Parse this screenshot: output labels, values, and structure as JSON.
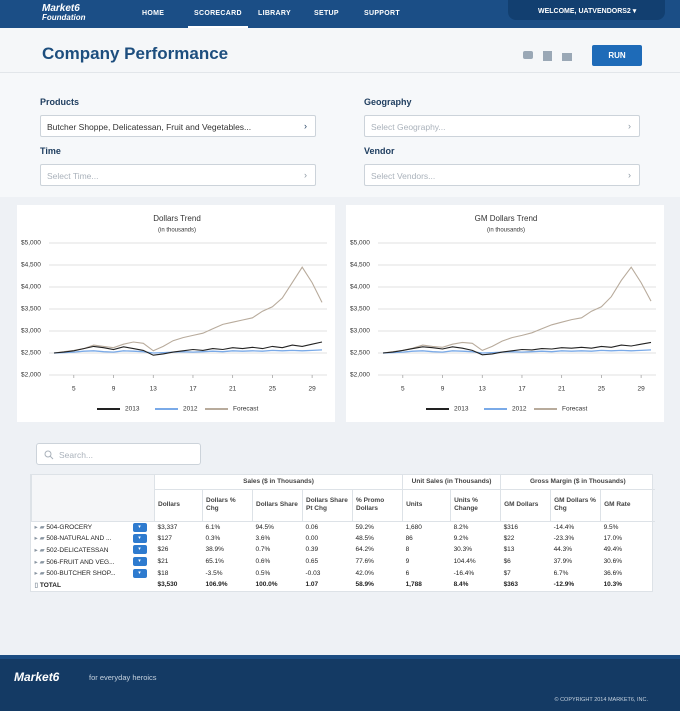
{
  "logo": {
    "line1": "Market6",
    "line2": "Foundation"
  },
  "nav": [
    "HOME",
    "SCORECARD",
    "LIBRARY",
    "SETUP",
    "SUPPORT"
  ],
  "welcome": "WELCOME, UATVENDORS2",
  "header": {
    "title": "Company Performance",
    "run": "RUN"
  },
  "filters": [
    {
      "label": "Products",
      "value": "Butcher Shoppe, Delicatessan, Fruit and Vegetables..."
    },
    {
      "label": "Geography",
      "value": "Select Geography..."
    },
    {
      "label": "Time",
      "value": "Select Time..."
    },
    {
      "label": "Vendor",
      "value": "Select Vendors..."
    }
  ],
  "chart_data": [
    {
      "type": "line",
      "title": "Dollars Trend",
      "subtitle": "(in thousands)",
      "x": [
        3,
        4,
        5,
        6,
        7,
        8,
        9,
        10,
        11,
        12,
        13,
        14,
        15,
        16,
        17,
        18,
        19,
        20,
        21,
        22,
        23,
        24,
        25,
        26,
        27,
        28,
        29,
        30
      ],
      "xlim": [
        2.5,
        30.5
      ],
      "xticks": [
        5,
        9,
        13,
        17,
        21,
        25,
        29
      ],
      "ylim": [
        2000,
        5000
      ],
      "yticks": [
        {
          "value": 2000,
          "label": "$2,000"
        },
        {
          "value": 2500,
          "label": "$2,500"
        },
        {
          "value": 3000,
          "label": "$3,000"
        },
        {
          "value": 3500,
          "label": "$3,500"
        },
        {
          "value": 4000,
          "label": "$4,000"
        },
        {
          "value": 4500,
          "label": "$4,500"
        },
        {
          "value": 5000,
          "label": "$5,000"
        }
      ],
      "grid": true,
      "series": [
        {
          "name": "2013",
          "color": "#222222",
          "values": [
            2500,
            2520,
            2550,
            2600,
            2650,
            2620,
            2580,
            2640,
            2600,
            2560,
            2450,
            2480,
            2520,
            2550,
            2580,
            2560,
            2600,
            2580,
            2620,
            2600,
            2630,
            2600,
            2650,
            2620,
            2680,
            2650,
            2700,
            2750
          ]
        },
        {
          "name": "2012",
          "color": "#7aaae8",
          "values": [
            2500,
            2510,
            2520,
            2540,
            2550,
            2530,
            2520,
            2550,
            2540,
            2530,
            2500,
            2510,
            2520,
            2530,
            2520,
            2530,
            2540,
            2530,
            2550,
            2540,
            2550,
            2540,
            2560,
            2550,
            2560,
            2550,
            2560,
            2570
          ]
        },
        {
          "name": "Forecast",
          "color": "#b8ab9c",
          "values": [
            2500,
            2530,
            2560,
            2600,
            2680,
            2650,
            2620,
            2700,
            2750,
            2720,
            2550,
            2650,
            2780,
            2850,
            2900,
            2950,
            3050,
            3150,
            3200,
            3250,
            3300,
            3450,
            3550,
            3750,
            4100,
            4450,
            4100,
            3650
          ]
        }
      ]
    },
    {
      "type": "line",
      "title": "GM Dollars Trend",
      "subtitle": "(in thousands)",
      "x": [
        3,
        4,
        5,
        6,
        7,
        8,
        9,
        10,
        11,
        12,
        13,
        14,
        15,
        16,
        17,
        18,
        19,
        20,
        21,
        22,
        23,
        24,
        25,
        26,
        27,
        28,
        29,
        30
      ],
      "xlim": [
        2.5,
        30.5
      ],
      "xticks": [
        5,
        9,
        13,
        17,
        21,
        25,
        29
      ],
      "ylim": [
        2000,
        5000
      ],
      "yticks": [
        {
          "value": 2000,
          "label": "$2,000"
        },
        {
          "value": 2500,
          "label": "$2,500"
        },
        {
          "value": 3000,
          "label": "$3,000"
        },
        {
          "value": 3500,
          "label": "$3,500"
        },
        {
          "value": 4000,
          "label": "$4,000"
        },
        {
          "value": 4500,
          "label": "$4,500"
        },
        {
          "value": 5000,
          "label": "$5,000"
        }
      ],
      "grid": true,
      "series": [
        {
          "name": "2013",
          "color": "#222222",
          "values": [
            2500,
            2520,
            2560,
            2600,
            2640,
            2620,
            2590,
            2640,
            2610,
            2560,
            2460,
            2480,
            2520,
            2550,
            2580,
            2570,
            2600,
            2590,
            2620,
            2610,
            2630,
            2610,
            2650,
            2630,
            2680,
            2660,
            2700,
            2740
          ]
        },
        {
          "name": "2012",
          "color": "#7aaae8",
          "values": [
            2500,
            2510,
            2520,
            2540,
            2550,
            2530,
            2520,
            2550,
            2540,
            2530,
            2500,
            2510,
            2520,
            2530,
            2520,
            2530,
            2540,
            2530,
            2550,
            2540,
            2550,
            2540,
            2560,
            2550,
            2560,
            2550,
            2560,
            2570
          ]
        },
        {
          "name": "Forecast",
          "color": "#b8ab9c",
          "values": [
            2500,
            2530,
            2560,
            2610,
            2680,
            2650,
            2630,
            2700,
            2740,
            2720,
            2560,
            2650,
            2770,
            2850,
            2900,
            2960,
            3050,
            3140,
            3200,
            3260,
            3300,
            3450,
            3550,
            3780,
            4150,
            4450,
            4100,
            3680
          ]
        }
      ]
    }
  ],
  "search": "Search...",
  "table": {
    "groups": [
      "Sales ($ in Thousands)",
      "Unit Sales (in Thousands)",
      "Gross Margin ($ in Thousands)"
    ],
    "columns": [
      "Dollars",
      "Dollars % Chg",
      "Dollars Share",
      "Dollars Share Pt Chg",
      "% Promo Dollars",
      "Units",
      "Units % Change",
      "GM Dollars",
      "GM Dollars % Chg",
      "GM Rate"
    ],
    "rows": [
      {
        "name": "504-GROCERY",
        "cells": [
          "$3,337",
          "6.1%",
          "94.5%",
          "0.06",
          "59.2%",
          "1,680",
          "8.2%",
          "$316",
          "-14.4%",
          "9.5%"
        ]
      },
      {
        "name": "508-NATURAL AND ...",
        "cells": [
          "$127",
          "0.3%",
          "3.6%",
          "0.00",
          "48.5%",
          "86",
          "9.2%",
          "$22",
          "-23.3%",
          "17.0%"
        ]
      },
      {
        "name": "502-DELICATESSAN",
        "cells": [
          "$26",
          "38.9%",
          "0.7%",
          "0.39",
          "64.2%",
          "8",
          "30.3%",
          "$13",
          "44.3%",
          "49.4%"
        ]
      },
      {
        "name": "506-FRUIT AND VEG...",
        "cells": [
          "$21",
          "65.1%",
          "0.6%",
          "0.65",
          "77.6%",
          "9",
          "104.4%",
          "$6",
          "37.9%",
          "30.6%"
        ]
      },
      {
        "name": "500-BUTCHER SHOP...",
        "cells": [
          "$18",
          "-3.5%",
          "0.5%",
          "-0.03",
          "42.0%",
          "6",
          "-16.4%",
          "$7",
          "6.7%",
          "36.6%"
        ]
      }
    ],
    "total": {
      "name": "TOTAL",
      "cells": [
        "$3,530",
        "106.9%",
        "100.0%",
        "1.07",
        "58.9%",
        "1,788",
        "8.4%",
        "$363",
        "-12.9%",
        "10.3%"
      ]
    }
  },
  "footer": {
    "logo": "Market6",
    "tagline": "for everyday heroics",
    "copyright": "© COPYRIGHT 2014 MARKET6, INC."
  }
}
